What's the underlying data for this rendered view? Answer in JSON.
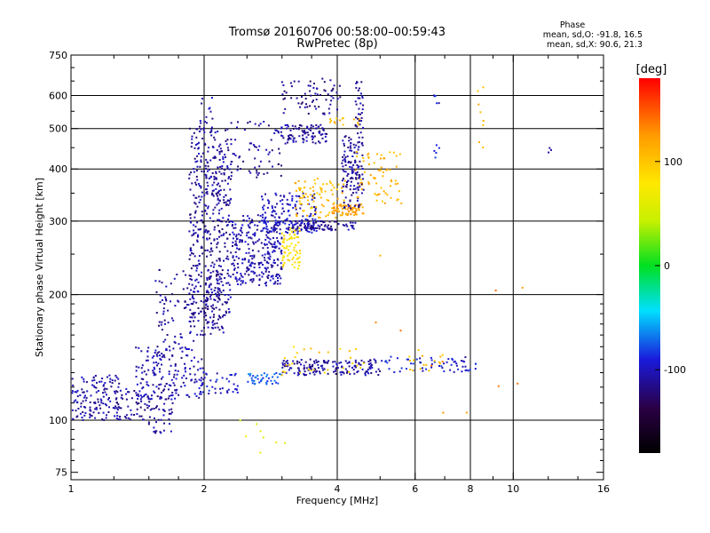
{
  "chart_data": {
    "type": "scatter",
    "title": "Tromsø 20160706 00:58:00–00:59:43",
    "subtitle": "RwPretec (8p)",
    "xlabel": "Frequency [MHz]",
    "ylabel": "Stationary phase Virtual Height [km]",
    "x_scale": "log2",
    "y_scale": "log",
    "xlim": [
      1,
      16
    ],
    "ylim": [
      72,
      750
    ],
    "x_ticks": [
      1,
      2,
      4,
      6,
      8,
      10,
      16
    ],
    "x_tick_labels": [
      "1",
      "2",
      "4",
      "6",
      "8",
      "10",
      "16"
    ],
    "y_ticks": [
      75,
      100,
      200,
      300,
      400,
      500,
      600,
      750
    ],
    "y_tick_labels": [
      "75",
      "100",
      "200",
      "300",
      "400",
      "500",
      "600",
      "750"
    ],
    "grid": true,
    "grid_x": [
      2,
      4,
      6,
      8,
      10
    ],
    "grid_y": [
      100,
      200,
      300,
      400,
      500,
      600
    ],
    "phase_info": {
      "title": "Phase",
      "line_o": "mean, sd,O: -91.8, 16.5",
      "line_x": "mean, sd,X:  90.6, 21.3"
    },
    "colorbar": {
      "label": "[deg]",
      "range": [
        -180,
        180
      ],
      "ticks": [
        100,
        0,
        -100
      ],
      "tick_labels": [
        "100",
        "0",
        "-100"
      ]
    },
    "clusters": [
      {
        "f_min": 1.0,
        "f_max": 1.3,
        "h_min": 100,
        "h_max": 128,
        "phase": -108,
        "count": 140
      },
      {
        "f_min": 1.25,
        "f_max": 1.7,
        "h_min": 100,
        "h_max": 120,
        "phase": -110,
        "count": 90
      },
      {
        "f_min": 1.4,
        "f_max": 2.0,
        "h_min": 112,
        "h_max": 150,
        "phase": -105,
        "count": 170
      },
      {
        "f_min": 1.5,
        "f_max": 1.7,
        "h_min": 93,
        "h_max": 100,
        "phase": -110,
        "count": 14
      },
      {
        "f_min": 1.95,
        "f_max": 2.4,
        "h_min": 115,
        "h_max": 130,
        "phase": -95,
        "count": 40
      },
      {
        "f_min": 2.5,
        "f_max": 3.0,
        "h_min": 122,
        "h_max": 130,
        "phase": -75,
        "count": 40
      },
      {
        "f_min": 3.0,
        "f_max": 5.0,
        "h_min": 128,
        "h_max": 140,
        "phase": -110,
        "count": 160
      },
      {
        "f_min": 3.0,
        "f_max": 4.6,
        "h_min": 128,
        "h_max": 150,
        "phase": 95,
        "count": 30
      },
      {
        "f_min": 5.0,
        "f_max": 8.3,
        "h_min": 130,
        "h_max": 142,
        "phase": -95,
        "count": 60
      },
      {
        "f_min": 5.4,
        "f_max": 8.0,
        "h_min": 130,
        "h_max": 150,
        "phase": 100,
        "count": 15
      },
      {
        "f_min": 1.55,
        "f_max": 1.9,
        "h_min": 150,
        "h_max": 230,
        "phase": -110,
        "count": 70
      },
      {
        "f_min": 1.85,
        "f_max": 2.3,
        "h_min": 160,
        "h_max": 500,
        "phase": -110,
        "count": 480
      },
      {
        "f_min": 2.0,
        "f_max": 2.2,
        "h_min": 170,
        "h_max": 230,
        "phase": -110,
        "count": 60
      },
      {
        "f_min": 2.3,
        "f_max": 3.0,
        "h_min": 210,
        "h_max": 310,
        "phase": -105,
        "count": 280
      },
      {
        "f_min": 2.7,
        "f_max": 3.6,
        "h_min": 280,
        "h_max": 350,
        "phase": -100,
        "count": 150
      },
      {
        "f_min": 3.0,
        "f_max": 3.3,
        "h_min": 230,
        "h_max": 290,
        "phase": 85,
        "count": 70
      },
      {
        "f_min": 3.1,
        "f_max": 4.4,
        "h_min": 285,
        "h_max": 300,
        "phase": -110,
        "count": 90
      },
      {
        "f_min": 3.2,
        "f_max": 4.2,
        "h_min": 305,
        "h_max": 380,
        "phase": 105,
        "count": 90
      },
      {
        "f_min": 3.9,
        "f_max": 4.6,
        "h_min": 310,
        "h_max": 330,
        "phase": 125,
        "count": 60
      },
      {
        "f_min": 4.1,
        "f_max": 4.5,
        "h_min": 320,
        "h_max": 480,
        "phase": -110,
        "count": 110
      },
      {
        "f_min": 4.4,
        "f_max": 5.6,
        "h_min": 330,
        "h_max": 440,
        "phase": 110,
        "count": 70
      },
      {
        "f_min": 2.3,
        "f_max": 3.0,
        "h_min": 380,
        "h_max": 520,
        "phase": -110,
        "count": 70
      },
      {
        "f_min": 3.0,
        "f_max": 3.8,
        "h_min": 460,
        "h_max": 510,
        "phase": -110,
        "count": 90
      },
      {
        "f_min": 3.0,
        "f_max": 4.1,
        "h_min": 540,
        "h_max": 660,
        "phase": -115,
        "count": 70
      },
      {
        "f_min": 4.4,
        "f_max": 4.6,
        "h_min": 350,
        "h_max": 650,
        "phase": -110,
        "count": 60
      },
      {
        "f_min": 3.8,
        "f_max": 4.5,
        "h_min": 510,
        "h_max": 530,
        "phase": 100,
        "count": 15
      },
      {
        "f_min": 1.95,
        "f_max": 2.1,
        "h_min": 500,
        "h_max": 600,
        "phase": -105,
        "count": 15
      },
      {
        "f_min": 6.6,
        "f_max": 6.8,
        "h_min": 420,
        "h_max": 620,
        "phase": -95,
        "count": 10
      },
      {
        "f_min": 8.3,
        "f_max": 8.6,
        "h_min": 450,
        "h_max": 630,
        "phase": 110,
        "count": 8
      },
      {
        "f_min": 12.0,
        "f_max": 12.2,
        "h_min": 420,
        "h_max": 470,
        "phase": -120,
        "count": 3
      },
      {
        "f_min": 4.8,
        "f_max": 11.0,
        "h_min": 90,
        "h_max": 280,
        "phase": 130,
        "count": 12
      },
      {
        "f_min": 2.4,
        "f_max": 3.2,
        "h_min": 80,
        "h_max": 100,
        "phase": 60,
        "count": 8
      }
    ]
  }
}
